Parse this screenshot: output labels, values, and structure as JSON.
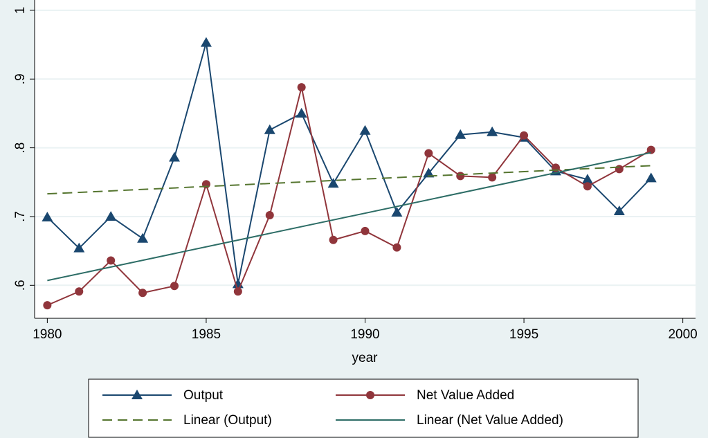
{
  "chart_data": {
    "type": "line",
    "x_label": "year",
    "x": [
      1980,
      1981,
      1982,
      1983,
      1984,
      1985,
      1986,
      1987,
      1988,
      1989,
      1990,
      1991,
      1992,
      1993,
      1994,
      1995,
      1996,
      1997,
      1998,
      1999
    ],
    "series": [
      {
        "name": "Output",
        "color": "#1a476f",
        "marker": "triangle",
        "values": [
          0.699,
          0.654,
          0.7,
          0.668,
          0.786,
          0.953,
          0.602,
          0.826,
          0.85,
          0.748,
          0.825,
          0.706,
          0.763,
          0.819,
          0.823,
          0.815,
          0.766,
          0.754,
          0.708,
          0.756
        ]
      },
      {
        "name": "Net Value Added",
        "color": "#90353b",
        "marker": "circle",
        "values": [
          0.571,
          0.591,
          0.636,
          0.589,
          0.599,
          0.747,
          0.591,
          0.702,
          0.888,
          0.666,
          0.679,
          0.655,
          0.792,
          0.759,
          0.757,
          0.818,
          0.771,
          0.744,
          0.769,
          0.797
        ]
      },
      {
        "name": "Linear (Output)",
        "color": "#55752f",
        "dash": "14 8",
        "x": [
          1980,
          1999
        ],
        "values": [
          0.733,
          0.774
        ]
      },
      {
        "name": "Linear (Net Value Added)",
        "color": "#2d6d66",
        "x": [
          1980,
          1999
        ],
        "values": [
          0.607,
          0.793
        ]
      }
    ],
    "xlim": [
      1979.6,
      2000.4
    ],
    "xticks": [
      1980,
      1985,
      1990,
      1995,
      2000
    ],
    "ylim": [
      0.552,
      1.015
    ],
    "yticks": [
      {
        "value": 0.6,
        "label": ".6"
      },
      {
        "value": 0.7,
        "label": ".7"
      },
      {
        "value": 0.8,
        "label": ".8"
      },
      {
        "value": 0.9,
        "label": ".9"
      },
      1
    ],
    "grid": true,
    "legend": "bottom"
  }
}
